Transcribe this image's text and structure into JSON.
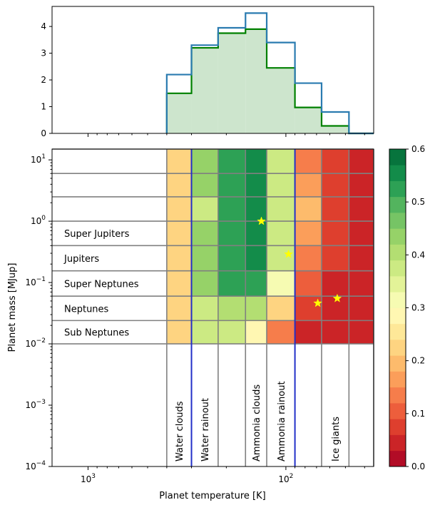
{
  "chart_data": [
    {
      "type": "histogram",
      "x_scale": "log-reversed",
      "xlim": [
        1520,
        36
      ],
      "ylim": [
        0,
        4.75
      ],
      "bin_edges": [
        400,
        300,
        220,
        160,
        125,
        90,
        66,
        48,
        36
      ],
      "yticks": [
        "0",
        "1",
        "2",
        "3",
        "4"
      ],
      "series": [
        {
          "style": "step-outline",
          "color": "#2a7bb0",
          "values": [
            2.2,
            3.3,
            3.95,
            4.5,
            3.4,
            1.88,
            0.8,
            0
          ]
        },
        {
          "style": "step-filled",
          "color": "#008000",
          "fill": "#cde5cd",
          "values": [
            1.5,
            3.2,
            3.75,
            3.9,
            2.45,
            0.97,
            0.28,
            0
          ]
        }
      ]
    },
    {
      "type": "heatmap",
      "x_scale": "log-reversed",
      "y_scale": "log",
      "xlim": [
        1520,
        36
      ],
      "ylim": [
        0.0001,
        15
      ],
      "xlabel": "Planet temperature [K]",
      "ylabel": "Planet mass [MJup]",
      "xticks": [
        "10^3",
        "10^2"
      ],
      "yticks": [
        "10^1",
        "10^0",
        "10^-1",
        "10^-2",
        "10^-3",
        "10^-4"
      ],
      "temperature_edges": [
        400,
        300,
        220,
        160,
        125,
        90,
        66,
        48,
        36
      ],
      "mass_edges": [
        0.01,
        0.024,
        0.06,
        0.155,
        0.4,
        1.0,
        2.5,
        6.0,
        15
      ],
      "values": [
        [
          0.21,
          0.38,
          0.38,
          0.27,
          0.12,
          0.03,
          0.03,
          0.03
        ],
        [
          0.21,
          0.38,
          0.41,
          0.41,
          0.23,
          0.08,
          0.03,
          0.03
        ],
        [
          0.21,
          0.42,
          0.52,
          0.52,
          0.32,
          0.11,
          0.03,
          0.03
        ],
        [
          0.21,
          0.42,
          0.52,
          0.55,
          0.36,
          0.14,
          0.07,
          0.03
        ],
        [
          0.21,
          0.42,
          0.52,
          0.55,
          0.38,
          0.17,
          0.07,
          0.03
        ],
        [
          0.21,
          0.38,
          0.52,
          0.55,
          0.38,
          0.2,
          0.07,
          0.03
        ],
        [
          0.21,
          0.42,
          0.52,
          0.55,
          0.38,
          0.17,
          0.07,
          0.03
        ],
        [
          0.21,
          0.42,
          0.52,
          0.55,
          0.38,
          0.14,
          0.07,
          0.03
        ]
      ],
      "stars": [
        {
          "temperature": 133,
          "mass": 1.0
        },
        {
          "temperature": 97,
          "mass": 0.29
        },
        {
          "temperature": 69,
          "mass": 0.046
        },
        {
          "temperature": 55,
          "mass": 0.055
        }
      ],
      "mass_classes": [
        "Sub Neptunes",
        "Neptunes",
        "Super Neptunes",
        "Jupiters",
        "Super Jupiters"
      ],
      "regions": [
        "Water clouds",
        "Water rainout",
        "Ammonia clouds",
        "Ammonia rainout",
        "Ice giants"
      ],
      "colorbar": {
        "colormap": "RdYlGn",
        "range": [
          0,
          0.6
        ],
        "levels": 20,
        "ticks": [
          "0.0",
          "0.1",
          "0.2",
          "0.3",
          "0.4",
          "0.5",
          "0.6"
        ]
      }
    }
  ]
}
